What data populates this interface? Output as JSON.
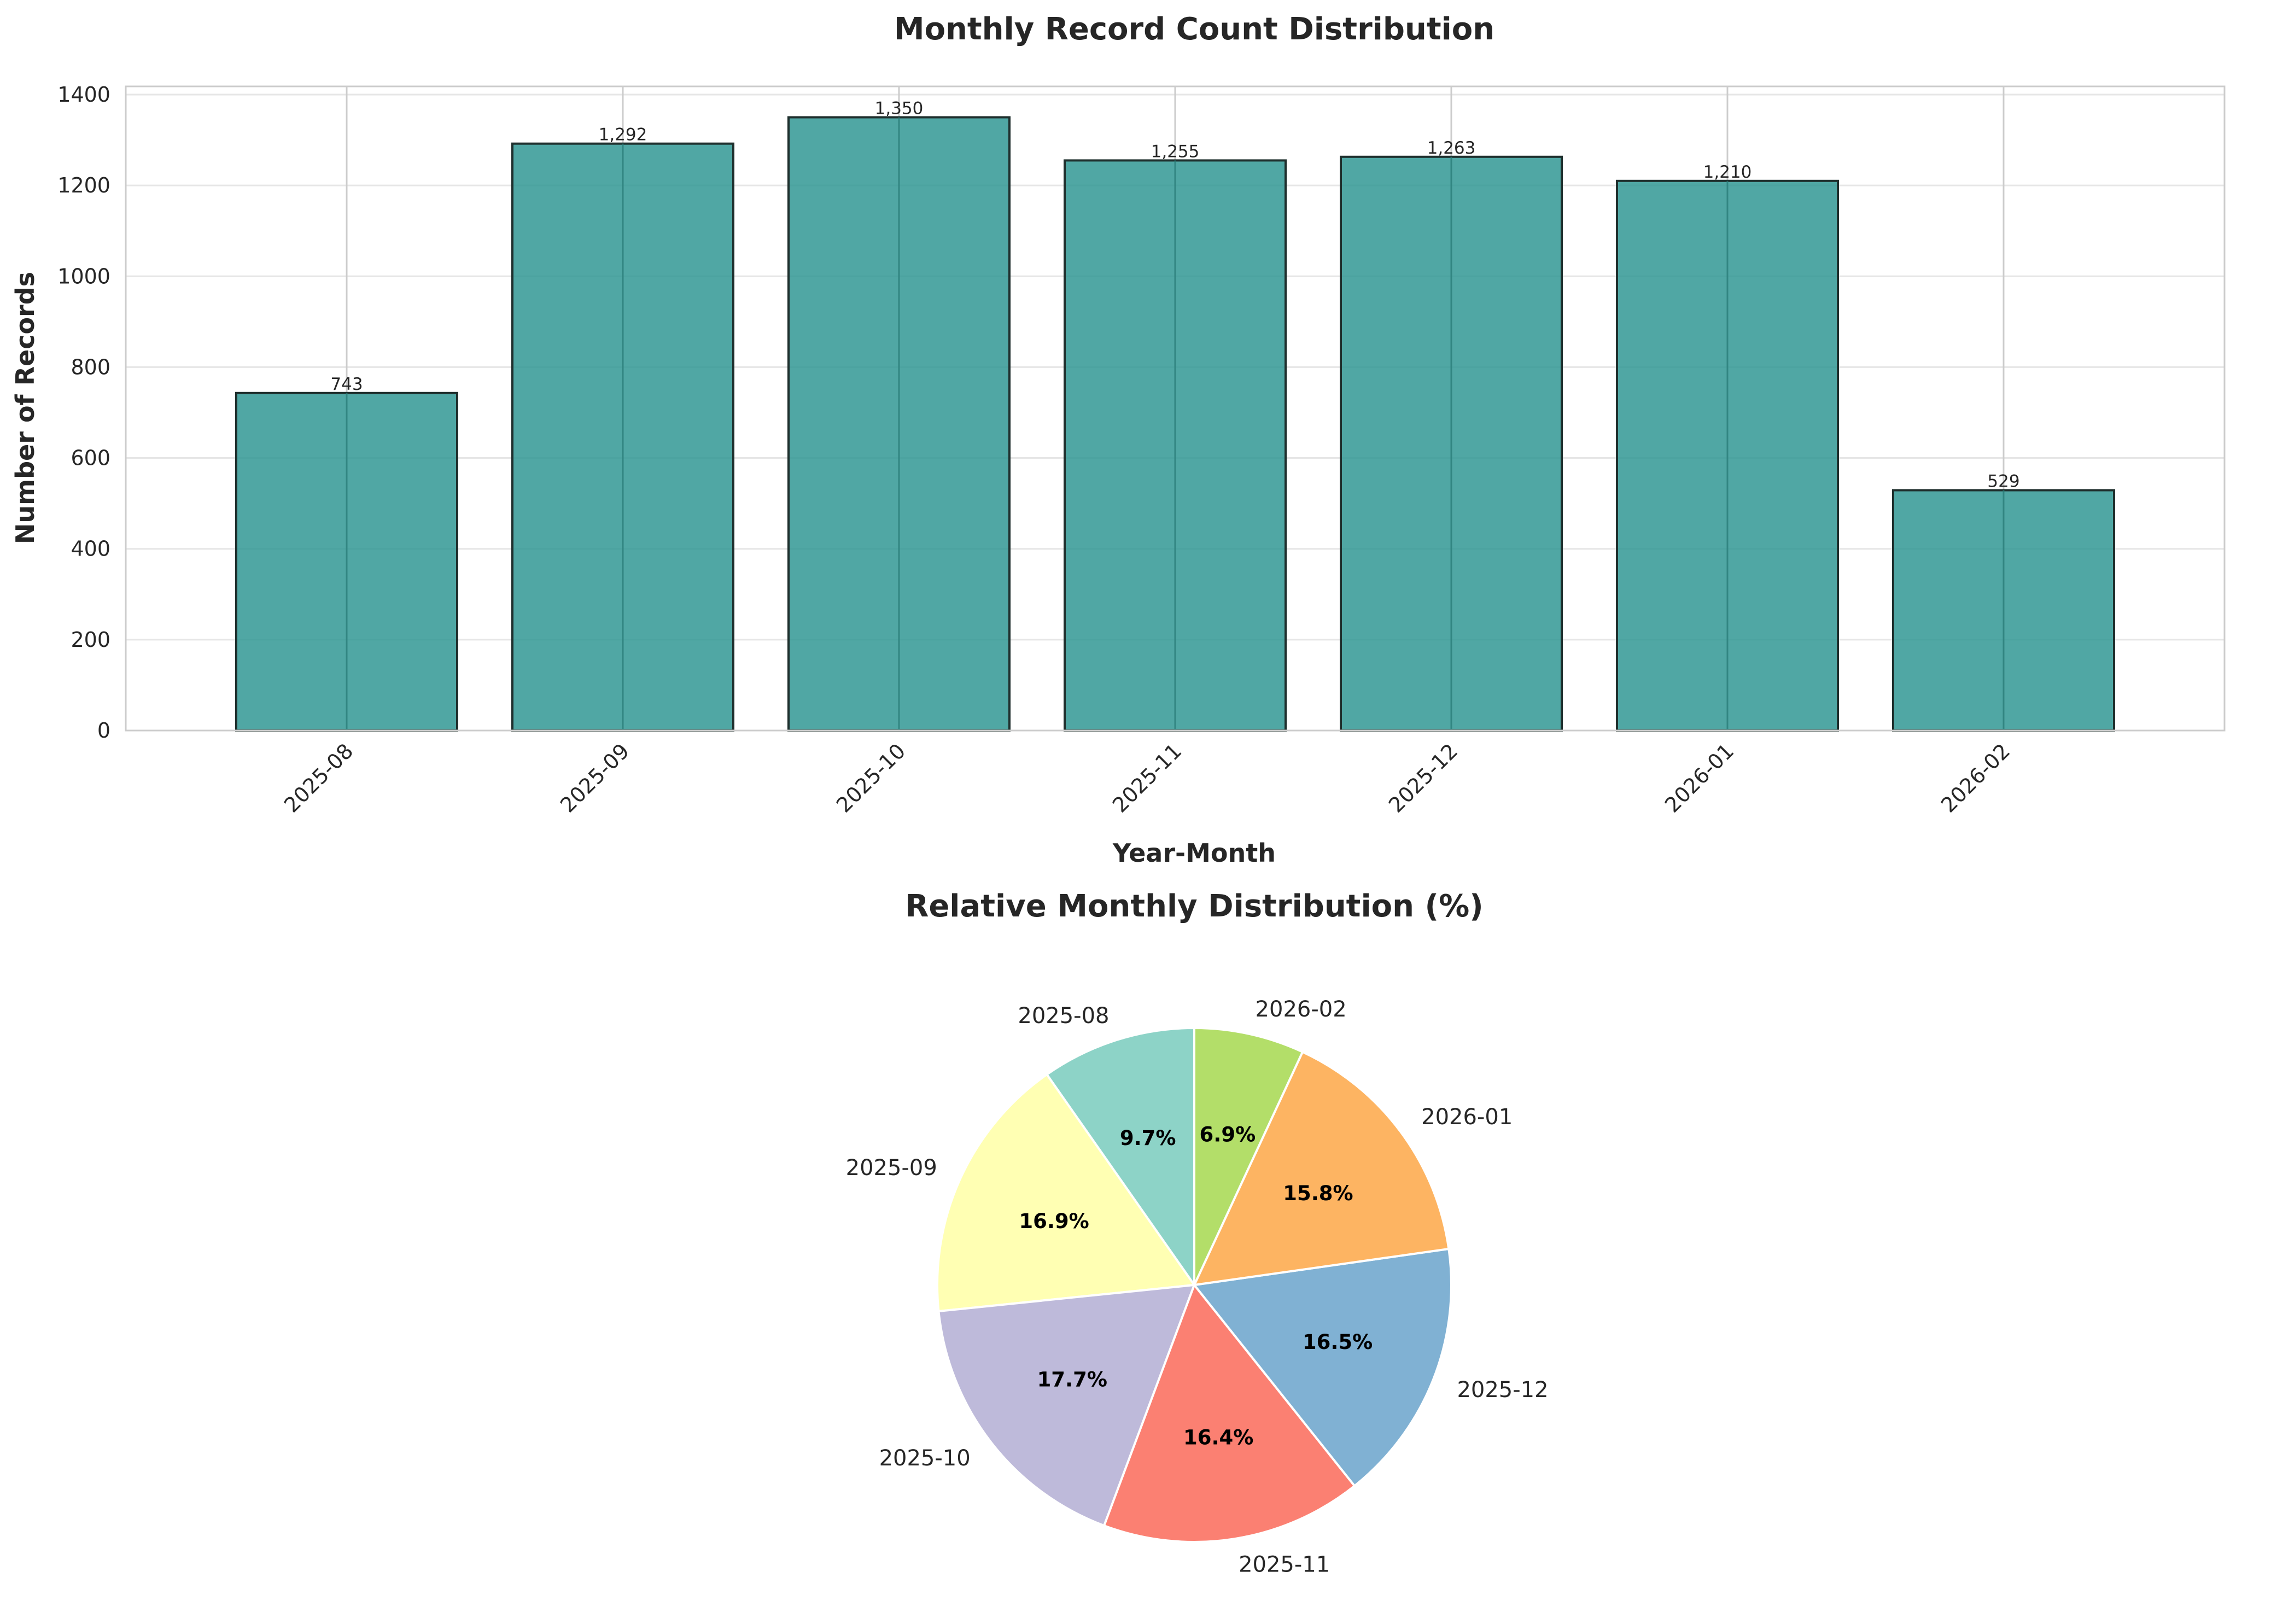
{
  "chart_data": [
    {
      "type": "bar",
      "title": "Monthly Record Count Distribution",
      "xlabel": "Year-Month",
      "ylabel": "Number of Records",
      "categories": [
        "2025-08",
        "2025-09",
        "2025-10",
        "2025-11",
        "2025-12",
        "2026-01",
        "2026-02"
      ],
      "values": [
        743,
        1292,
        1350,
        1255,
        1263,
        1210,
        529
      ],
      "value_labels": [
        "743",
        "1,292",
        "1,350",
        "1,255",
        "1,263",
        "1,210",
        "529"
      ],
      "ylim": [
        0,
        1418
      ],
      "yticks": [
        0,
        200,
        400,
        600,
        800,
        1000,
        1200,
        1400
      ],
      "grid": true,
      "bar_color": "#2a9490",
      "edge_color": "#1f2f2d"
    },
    {
      "type": "pie",
      "title": "Relative Monthly Distribution (%)",
      "labels": [
        "2025-08",
        "2025-09",
        "2025-10",
        "2025-11",
        "2025-12",
        "2026-01",
        "2026-02"
      ],
      "values": [
        743,
        1292,
        1350,
        1255,
        1263,
        1210,
        529
      ],
      "percent_labels": [
        "9.7%",
        "16.9%",
        "17.7%",
        "16.4%",
        "16.5%",
        "15.8%",
        "6.9%"
      ],
      "colors": [
        "#8dd3c7",
        "#ffffb3",
        "#bebada",
        "#fb8072",
        "#80b1d3",
        "#fdb462",
        "#b3de69"
      ],
      "start_angle_deg": 90,
      "direction": "counterclockwise"
    }
  ]
}
